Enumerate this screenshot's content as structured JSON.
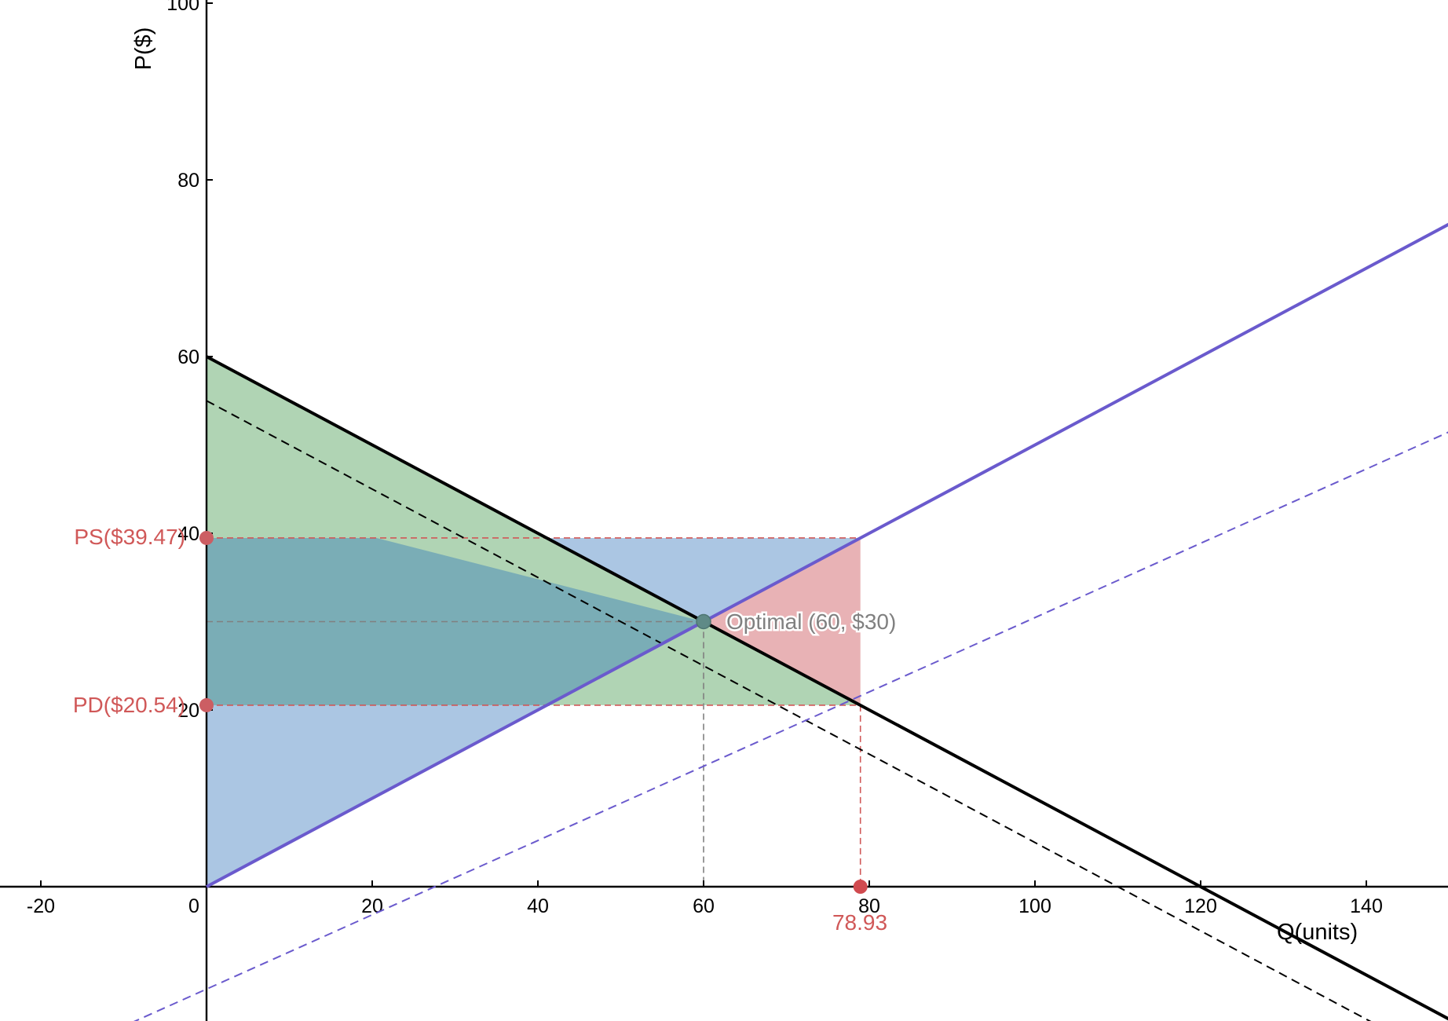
{
  "chart_data": {
    "type": "line",
    "title": "",
    "xlabel": "Q(units)",
    "ylabel": "P($)",
    "xlim": [
      -20,
      150
    ],
    "ylim": [
      -16,
      100
    ],
    "x_ticks": [
      -20,
      0,
      20,
      40,
      60,
      80,
      100,
      120,
      140
    ],
    "y_ticks": [
      80,
      60,
      40,
      20,
      100
    ],
    "x_tick_labels": [
      "-20",
      "0",
      "20",
      "40",
      "60",
      "80",
      "100",
      "120",
      "140"
    ],
    "y_tick_labels": [
      "80",
      "60",
      "40",
      "20",
      "100"
    ],
    "grid": false,
    "series": [
      {
        "style": "solid",
        "color": "#000000",
        "points": [
          [
            0,
            60
          ],
          [
            150,
            -15
          ]
        ]
      },
      {
        "style": "dashed",
        "color": "#000000",
        "points": [
          [
            0,
            55
          ],
          [
            150,
            -20
          ]
        ]
      },
      {
        "style": "solid",
        "color": "#6a5acd",
        "points": [
          [
            0,
            0
          ],
          [
            150,
            75
          ]
        ]
      },
      {
        "style": "dashed",
        "color": "#6a5acd",
        "points": [
          [
            -20,
            -20
          ],
          [
            150,
            51.48
          ]
        ]
      }
    ],
    "regions": [
      {
        "color": "#abc6e3",
        "points": [
          [
            0,
            0
          ],
          [
            78.93,
            39.47
          ],
          [
            0,
            39.47
          ]
        ]
      },
      {
        "color": "#b0d4b4",
        "points": [
          [
            0,
            60
          ],
          [
            78.93,
            20.54
          ],
          [
            0,
            20.54
          ]
        ]
      },
      {
        "color": "#7aadb6",
        "points": [
          [
            0,
            20.54
          ],
          [
            41.08,
            20.54
          ],
          [
            60,
            30
          ],
          [
            20.53,
            39.47
          ],
          [
            0,
            39.47
          ]
        ]
      },
      {
        "color": "#e8b2b5",
        "points": [
          [
            60,
            30
          ],
          [
            78.93,
            39.47
          ],
          [
            78.93,
            20.54
          ]
        ]
      }
    ],
    "annotations": {
      "optimal": {
        "x": 60,
        "y": 30,
        "label": "Optimal (60, $30)",
        "color": "#808080"
      },
      "ps": {
        "x": 0,
        "y": 39.47,
        "label": "PS($39.47)",
        "color": "#d05858"
      },
      "pd": {
        "x": 0,
        "y": 20.54,
        "label": "PD($20.54)",
        "color": "#d05858"
      },
      "qpoint": {
        "x": 78.93,
        "y": 0,
        "label": "78.93",
        "color": "#d05858"
      }
    }
  }
}
